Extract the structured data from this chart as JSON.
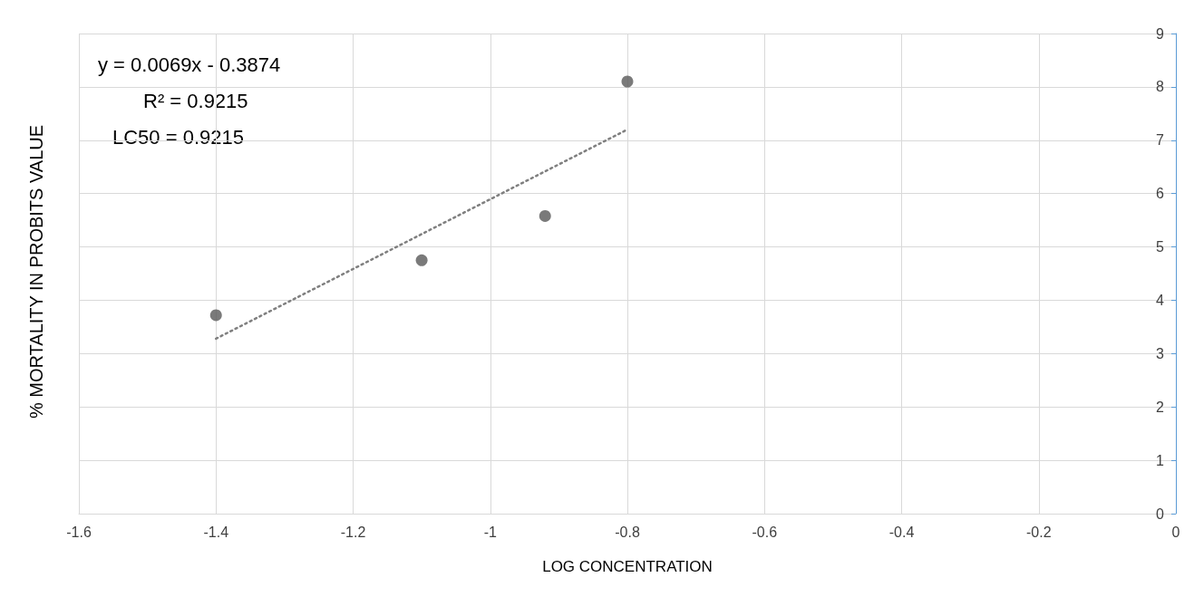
{
  "chart_data": {
    "type": "scatter",
    "xlabel": "LOG CONCENTRATION",
    "ylabel": "% MORTALITY IN PROBITS VALUE",
    "annotations": [
      "y = 0.0069x - 0.3874",
      "R² = 0.9215",
      "LC50 = 0.9215"
    ],
    "series": [
      {
        "type": "scatter",
        "color": "#595959",
        "x": [
          -1.4,
          -1.1,
          -0.92,
          -0.8
        ],
        "values": [
          3.72,
          4.75,
          5.58,
          8.1
        ],
        "marker": "circle"
      },
      {
        "type": "line",
        "color": "#7f7f7f",
        "x": [
          -1.4,
          -0.8
        ],
        "values": [
          3.28,
          7.2
        ],
        "line_style": "dotted",
        "marker": "none"
      }
    ],
    "xlim": [
      -1.6,
      0
    ],
    "xticks": [
      -1.6,
      -1.4,
      -1.2,
      -1,
      -0.8,
      -0.6,
      -0.4,
      -0.2,
      0
    ],
    "ylim": [
      0,
      9
    ],
    "yticks": [
      0,
      1,
      2,
      3,
      4,
      5,
      6,
      7,
      8,
      9
    ],
    "grid": true
  }
}
